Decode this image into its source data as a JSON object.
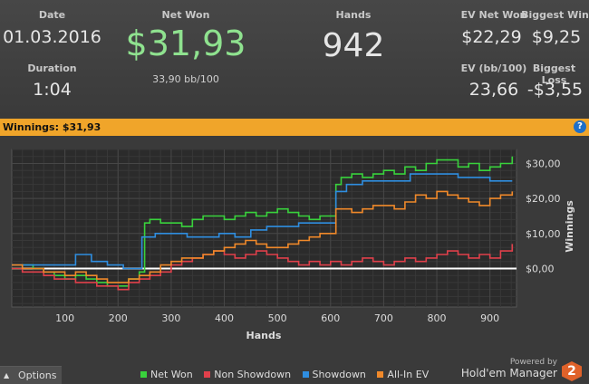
{
  "stats": {
    "date_label": "Date",
    "date_value": "01.03.2016",
    "duration_label": "Duration",
    "duration_value": "1:04",
    "net_won_label": "Net Won",
    "net_won_value": "$31,93",
    "bb100_value": "33,90 bb/100",
    "hands_label": "Hands",
    "hands_value": "942",
    "ev_net_won_label": "EV Net Won",
    "ev_net_won_value": "$22,29",
    "biggest_win_label": "Biggest Win",
    "biggest_win_value": "$9,25",
    "ev_bb100_label": "EV (bb/100)",
    "ev_bb100_value": "23,66",
    "biggest_loss_label": "Biggest Loss",
    "biggest_loss_value": "-$3,55"
  },
  "winnings_bar": {
    "text": "Winnings: $31,93",
    "help_icon": "help-icon"
  },
  "colors": {
    "net_won": "#39d23c",
    "non_showdown": "#e0404b",
    "showdown": "#2f8ee0",
    "all_in_ev": "#f0892a",
    "net_won_text": "#8fe28f",
    "accent_bar": "#f0a52a"
  },
  "footer": {
    "options_label": "Options",
    "options_icon": "chevron-up-icon",
    "powered_by": "Powered by",
    "brand": "Hold'em Manager",
    "brand_mark": "2"
  },
  "chart_data": {
    "type": "line",
    "xlabel": "Hands",
    "ylabel": "Winnings",
    "xlim": [
      0,
      950
    ],
    "ylim": [
      -11,
      34
    ],
    "xticks": [
      100,
      200,
      300,
      400,
      500,
      600,
      700,
      800,
      900
    ],
    "xtick_labels": [
      "100",
      "200",
      "300",
      "400",
      "500",
      "600",
      "700",
      "800",
      "900"
    ],
    "yticks": [
      0,
      10,
      20,
      30
    ],
    "ytick_labels": [
      "$0,00",
      "$10,00",
      "$20,00",
      "$30,00"
    ],
    "grid": true,
    "legend_position": "bottom",
    "series": [
      {
        "name": "Net Won",
        "color": "#39d23c",
        "x": [
          0,
          20,
          40,
          60,
          80,
          100,
          120,
          140,
          160,
          180,
          200,
          220,
          240,
          250,
          260,
          280,
          300,
          320,
          340,
          360,
          380,
          400,
          420,
          440,
          460,
          480,
          500,
          520,
          540,
          560,
          580,
          600,
          610,
          620,
          640,
          660,
          680,
          700,
          720,
          740,
          760,
          780,
          800,
          820,
          840,
          860,
          880,
          900,
          920,
          942
        ],
        "y": [
          0,
          1,
          0,
          -1,
          -2,
          -3,
          -2,
          -3,
          -4,
          -5,
          -5,
          -3,
          -1,
          13,
          14,
          13,
          13,
          12,
          14,
          15,
          15,
          14,
          15,
          16,
          15,
          16,
          17,
          16,
          15,
          14,
          15,
          15,
          24,
          26,
          27,
          26,
          27,
          28,
          27,
          29,
          28,
          30,
          31,
          31,
          29,
          30,
          28,
          29,
          30,
          32
        ]
      },
      {
        "name": "Non Showdown",
        "color": "#e0404b",
        "x": [
          0,
          20,
          40,
          60,
          80,
          100,
          120,
          140,
          160,
          180,
          200,
          220,
          240,
          260,
          280,
          300,
          320,
          340,
          360,
          380,
          400,
          420,
          440,
          460,
          480,
          500,
          520,
          540,
          560,
          580,
          600,
          620,
          640,
          660,
          680,
          700,
          720,
          740,
          760,
          780,
          800,
          820,
          840,
          860,
          880,
          900,
          920,
          942
        ],
        "y": [
          0,
          -1,
          -1,
          -2,
          -3,
          -3,
          -4,
          -4,
          -5,
          -5,
          -6,
          -4,
          -3,
          -2,
          -1,
          1,
          2,
          3,
          4,
          5,
          4,
          3,
          4,
          5,
          4,
          3,
          2,
          1,
          2,
          1,
          2,
          1,
          2,
          3,
          2,
          1,
          2,
          3,
          2,
          3,
          4,
          5,
          4,
          3,
          4,
          3,
          5,
          7
        ]
      },
      {
        "name": "Showdown",
        "color": "#2f8ee0",
        "x": [
          0,
          30,
          60,
          90,
          120,
          150,
          180,
          210,
          240,
          245,
          270,
          300,
          330,
          360,
          390,
          420,
          450,
          480,
          510,
          540,
          570,
          600,
          610,
          630,
          660,
          690,
          720,
          750,
          780,
          810,
          840,
          870,
          900,
          942
        ],
        "y": [
          1,
          1,
          1,
          1,
          4,
          2,
          1,
          0,
          0,
          9,
          10,
          10,
          9,
          9,
          10,
          9,
          11,
          12,
          12,
          13,
          13,
          13,
          22,
          24,
          25,
          25,
          25,
          27,
          27,
          27,
          26,
          26,
          25,
          25
        ]
      },
      {
        "name": "All-In EV",
        "color": "#f0892a",
        "x": [
          0,
          20,
          40,
          60,
          80,
          100,
          120,
          140,
          160,
          180,
          200,
          220,
          240,
          260,
          280,
          300,
          320,
          340,
          360,
          380,
          400,
          420,
          440,
          460,
          480,
          500,
          520,
          540,
          560,
          580,
          600,
          610,
          620,
          640,
          660,
          680,
          700,
          720,
          740,
          760,
          780,
          800,
          820,
          840,
          860,
          880,
          900,
          920,
          942
        ],
        "y": [
          1,
          0,
          0,
          -1,
          -1,
          -2,
          -1,
          -2,
          -3,
          -4,
          -4,
          -3,
          -2,
          -1,
          1,
          2,
          3,
          3,
          4,
          5,
          6,
          7,
          8,
          7,
          6,
          6,
          7,
          8,
          9,
          10,
          10,
          17,
          17,
          16,
          17,
          18,
          18,
          17,
          19,
          21,
          20,
          22,
          21,
          20,
          19,
          18,
          20,
          21,
          22
        ]
      }
    ]
  }
}
